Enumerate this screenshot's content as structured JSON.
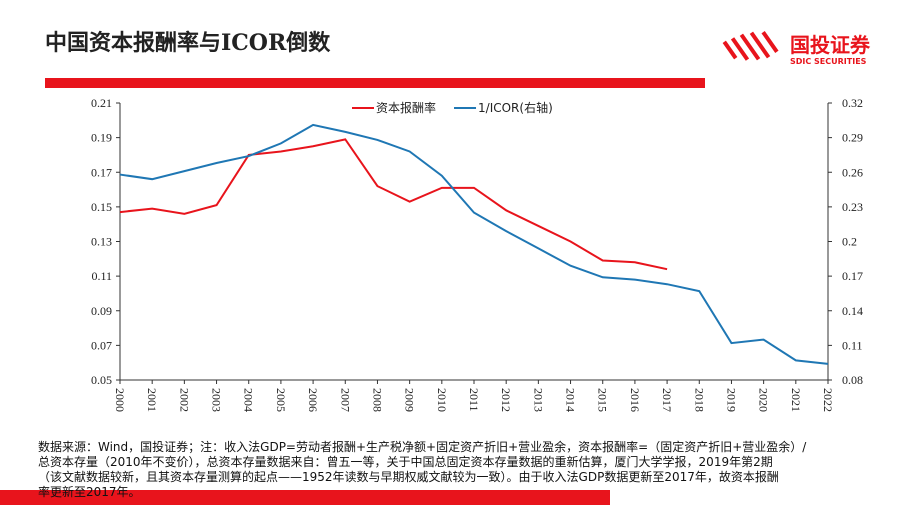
{
  "header": {
    "title": "中国资本报酬率与ICOR倒数",
    "logo": "国投证券",
    "logo_sub": "SDIC SECURITIES"
  },
  "chart_data": {
    "type": "line",
    "x": [
      "2000",
      "2001",
      "2002",
      "2003",
      "2004",
      "2005",
      "2006",
      "2007",
      "2008",
      "2009",
      "2010",
      "2011",
      "2012",
      "2013",
      "2014",
      "2015",
      "2016",
      "2017",
      "2018",
      "2019",
      "2020",
      "2021",
      "2022"
    ],
    "series": [
      {
        "name": "资本报酬率",
        "color": "#e8141c",
        "axis": "y",
        "values": [
          0.147,
          0.149,
          0.146,
          0.151,
          0.18,
          0.182,
          0.185,
          0.189,
          0.162,
          0.153,
          0.161,
          0.161,
          0.148,
          0.139,
          0.13,
          0.119,
          0.118,
          0.114,
          null,
          null,
          null,
          null,
          null
        ]
      },
      {
        "name": "1/ICOR(右轴)",
        "color": "#1f77b4",
        "axis": "y2",
        "values": [
          0.258,
          0.254,
          0.261,
          0.268,
          0.274,
          0.285,
          0.301,
          0.295,
          0.288,
          0.278,
          0.257,
          0.225,
          0.209,
          0.194,
          0.179,
          0.169,
          0.167,
          0.163,
          0.157,
          0.112,
          0.115,
          0.097,
          0.094
        ]
      }
    ],
    "ylim": [
      0.05,
      0.21
    ],
    "yticks": [
      0.05,
      0.07,
      0.09,
      0.11,
      0.13,
      0.15,
      0.17,
      0.19,
      0.21
    ],
    "y2lim": [
      0.08,
      0.32
    ],
    "y2ticks": [
      0.08,
      0.11,
      0.14,
      0.17,
      0.2,
      0.23,
      0.26,
      0.29,
      0.32
    ],
    "legend": "top"
  },
  "footnote": [
    "数据来源：Wind，国投证券；注：收入法GDP=劳动者报酬+生产税净额+固定资产折旧+营业盈余，资本报酬率=（固定资产折旧+营业盈余）/",
    "总资本存量（2010年不变价），总资本存量数据来自：曾五一等，关于中国总固定资本存量数据的重新估算，厦门大学学报，2019年第2期",
    "（该文献数据较新，且其资本存量测算的起点——1952年读数与早期权威文献较为一致）。由于收入法GDP数据更新至2017年，故资本报酬",
    "率更新至2017年。"
  ]
}
